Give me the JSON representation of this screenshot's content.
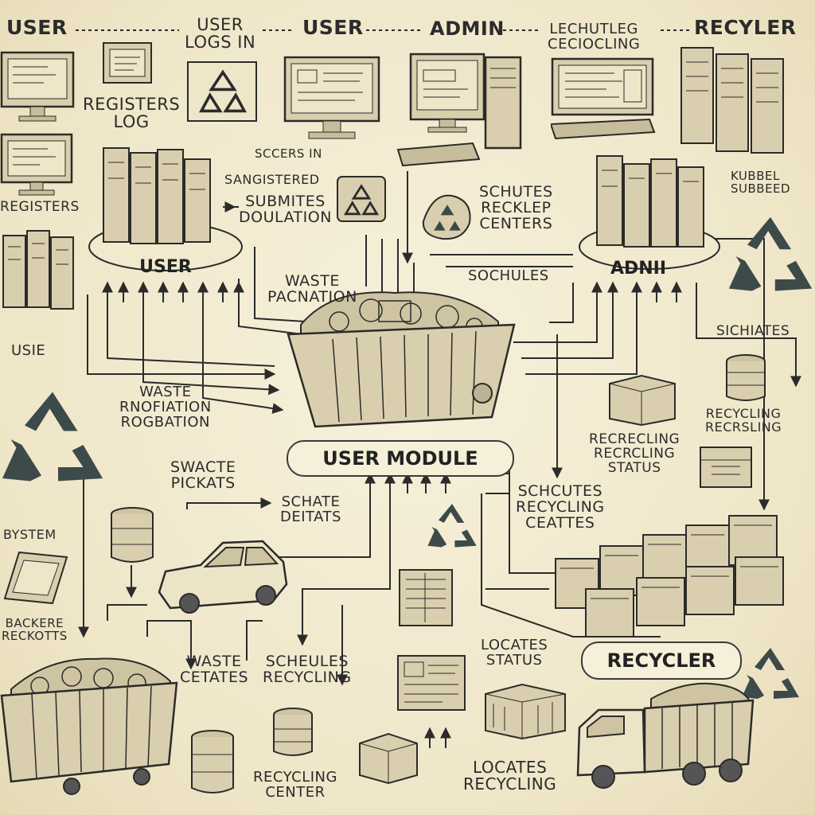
{
  "header": {
    "user_left": "USER",
    "user_logs_in": "USER\nLOGS IN",
    "user_mid": "USER",
    "admin": "ADMIN",
    "lechutleg": "LECHUTLEG\nCECIOCLING",
    "recycler": "RECYLER"
  },
  "hubs": {
    "user": "USER",
    "admin": "ADNII",
    "module": "USER MODULE",
    "recycler": "RECYCLER"
  },
  "labels": {
    "registers_log": "REGISTERS\nLOG",
    "registers": "REGISTERS",
    "submits_donation": "SUBMITES\nDOULATION",
    "sangistered": "SANGISTERED",
    "sccsers": "SCCERS IN",
    "schutes_recklep": "SCHUTES\nRECKLEP\nCENTERS",
    "waste_pacnation": "WASTE\nPACNATION",
    "sochules": "SOCHULES",
    "usie": "USIE",
    "waste_rnoflation": "WASTE\nRNOFIATION\nROGBATION",
    "swaste_pickats": "SWACTE\nPICKATS",
    "schate_deitats": "SCHATE\nDEITATS",
    "system": "BYSTEM",
    "backere_reckotts": "BACKERE\nRECKOTTS",
    "waste_cetates": "WASTE\nCETATES",
    "scheules_recycling": "SCHEULES\nRECYCLING",
    "recycling_center": "RECYCLING\nCENTER",
    "locates_status": "LOCATES\nSTATUS",
    "locates_recycling": "LOCATES\nRECYCLING",
    "recrecling_status": "RECRECLING\nRECRCLING\nSTATUS",
    "schcutes_centes": "SCHCUTES\nRECYCLING\nCEATTES",
    "sichiates": "SICHIATES",
    "recycling_recrsling": "RECYCLING\nRECRSLING",
    "kubbel_subbeed": "KUBBEL\nSUBBEED"
  },
  "colors": {
    "ink": "#2b2b2b",
    "paper": "#f3ecd3",
    "recycle": "#3d4a4a",
    "box": "#d9cfae"
  },
  "icons": [
    "monitor-icon",
    "server-icon",
    "recycle-icon",
    "dumpster-icon",
    "car-icon",
    "truck-icon",
    "barrel-icon",
    "crate-icon",
    "tablet-icon",
    "document-icon"
  ]
}
